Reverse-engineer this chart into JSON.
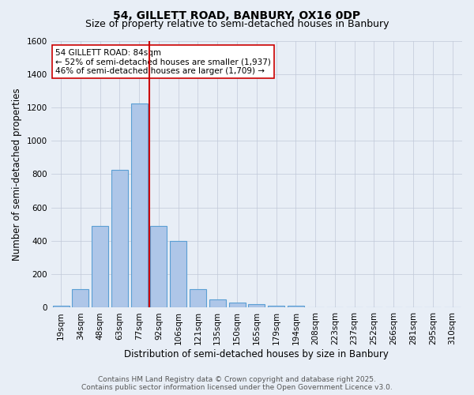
{
  "title": "54, GILLETT ROAD, BANBURY, OX16 0DP",
  "subtitle": "Size of property relative to semi-detached houses in Banbury",
  "xlabel": "Distribution of semi-detached houses by size in Banbury",
  "ylabel": "Number of semi-detached properties",
  "categories": [
    "19sqm",
    "34sqm",
    "48sqm",
    "63sqm",
    "77sqm",
    "92sqm",
    "106sqm",
    "121sqm",
    "135sqm",
    "150sqm",
    "165sqm",
    "179sqm",
    "194sqm",
    "208sqm",
    "223sqm",
    "237sqm",
    "252sqm",
    "266sqm",
    "281sqm",
    "295sqm",
    "310sqm"
  ],
  "values": [
    10,
    110,
    490,
    825,
    1225,
    490,
    400,
    110,
    48,
    30,
    20,
    12,
    10,
    0,
    0,
    0,
    0,
    0,
    0,
    0,
    0
  ],
  "bar_color": "#aec6e8",
  "bar_edge_color": "#5a9fd4",
  "vline_color": "#cc0000",
  "annotation_text": "54 GILLETT ROAD: 84sqm\n← 52% of semi-detached houses are smaller (1,937)\n46% of semi-detached houses are larger (1,709) →",
  "annotation_box_color": "#ffffff",
  "annotation_box_edge": "#cc0000",
  "ylim": [
    0,
    1600
  ],
  "yticks": [
    0,
    200,
    400,
    600,
    800,
    1000,
    1200,
    1400,
    1600
  ],
  "background_color": "#e8eef6",
  "plot_bg_color": "#e8eef6",
  "footer_line1": "Contains HM Land Registry data © Crown copyright and database right 2025.",
  "footer_line2": "Contains public sector information licensed under the Open Government Licence v3.0.",
  "title_fontsize": 10,
  "subtitle_fontsize": 9,
  "axis_label_fontsize": 8.5,
  "tick_fontsize": 7.5,
  "annotation_fontsize": 7.5,
  "footer_fontsize": 6.5
}
